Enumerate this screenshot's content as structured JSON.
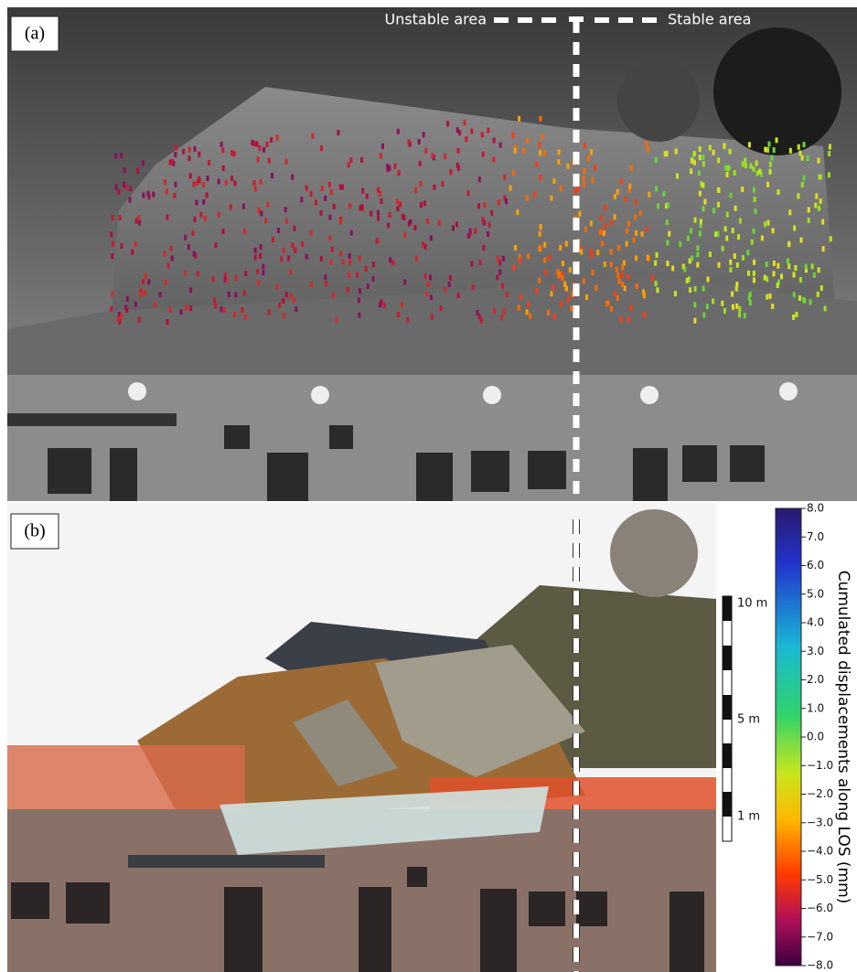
{
  "panels": [
    {
      "label": "(a)"
    },
    {
      "label": "(b)"
    }
  ],
  "annotations": {
    "unstable": "Unstable area",
    "stable": "Stable area"
  },
  "scale_bar": {
    "labels": [
      "10 m",
      "5 m",
      "1 m"
    ]
  },
  "colorbar": {
    "title": "Cumulated displacements along LOS (mm)",
    "clim": [
      -8,
      8
    ],
    "ticks": [
      {
        "value": 8,
        "label": "8.0"
      },
      {
        "value": 7,
        "label": "7.0"
      },
      {
        "value": 6,
        "label": "6.0"
      },
      {
        "value": 5,
        "label": "5.0"
      },
      {
        "value": 4,
        "label": "4.0"
      },
      {
        "value": 3,
        "label": "3.0"
      },
      {
        "value": 2,
        "label": "2.0"
      },
      {
        "value": 1,
        "label": "1.0"
      },
      {
        "value": 0,
        "label": "0.0"
      },
      {
        "value": -1,
        "label": "−1.0"
      },
      {
        "value": -2,
        "label": "−2.0"
      },
      {
        "value": -3,
        "label": "−3.0"
      },
      {
        "value": -4,
        "label": "−4.0"
      },
      {
        "value": -5,
        "label": "−5.0"
      },
      {
        "value": -6,
        "label": "−6.0"
      },
      {
        "value": -7,
        "label": "−7.0"
      },
      {
        "value": -8,
        "label": "−8.0"
      }
    ]
  }
}
